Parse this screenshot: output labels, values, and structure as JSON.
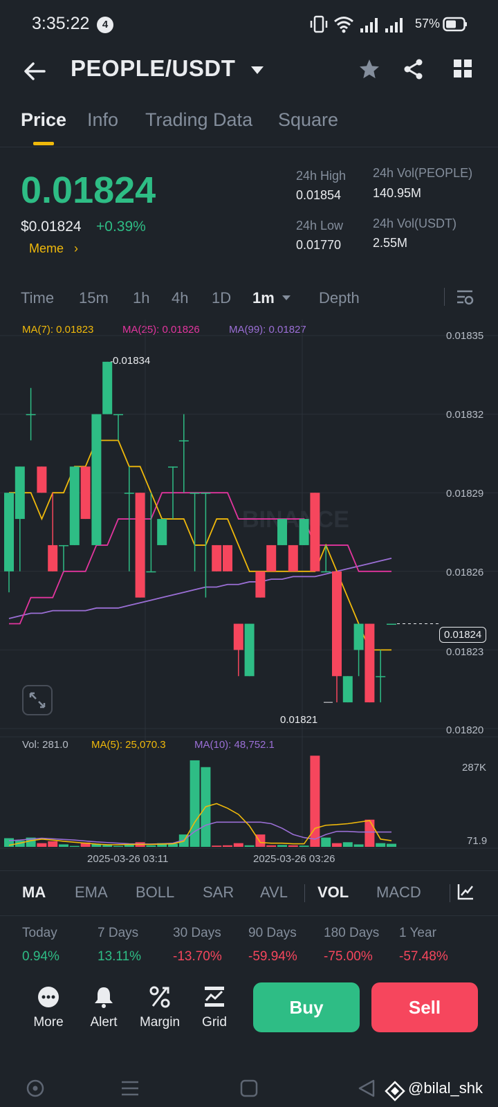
{
  "status_bar": {
    "time": "3:35:22",
    "notification_count": "4",
    "battery": "57%"
  },
  "header": {
    "pair": "PEOPLE/USDT"
  },
  "tabs": [
    {
      "label": "Price",
      "active": true
    },
    {
      "label": "Info",
      "active": false
    },
    {
      "label": "Trading Data",
      "active": false
    },
    {
      "label": "Square",
      "active": false
    }
  ],
  "ticker": {
    "last_price": "0.01824",
    "usd_price": "$0.01824",
    "change": "+0.39%",
    "tag": "Meme",
    "high_label": "24h High",
    "high_value": "0.01854",
    "low_label": "24h Low",
    "low_value": "0.01770",
    "vol_base_label": "24h Vol(PEOPLE)",
    "vol_base_value": "140.95M",
    "vol_quote_label": "24h Vol(USDT)",
    "vol_quote_value": "2.55M"
  },
  "intervals": {
    "items": [
      "Time",
      "15m",
      "1h",
      "4h",
      "1D"
    ],
    "selected": "1m",
    "depth": "Depth"
  },
  "ma_legend": {
    "ma7": "MA(7): 0.01823",
    "ma25": "MA(25): 0.01826",
    "ma99": "MA(99): 0.01827"
  },
  "price_axis": {
    "ticks": [
      "0.01835",
      "0.01832",
      "0.01829",
      "0.01826",
      "0.01823",
      "0.01820"
    ],
    "current": "0.01824",
    "high_marker": "0.01834",
    "low_marker": "0.01821"
  },
  "colors": {
    "up": "#2ebd85",
    "down": "#f6465d",
    "ma7": "#f0b90b",
    "ma25": "#e2359e",
    "ma99": "#9b6fd6",
    "accent": "#f0b90b"
  },
  "chart_data": {
    "type": "candlestick",
    "price_ylim": [
      0.0182,
      0.01835
    ],
    "x_ticks": [
      "2025-03-26 03:11",
      "2025-03-26 03:26"
    ],
    "candles": [
      {
        "o": 0.01826,
        "h": 0.01829,
        "l": 0.018252,
        "c": 0.01829
      },
      {
        "o": 0.01828,
        "h": 0.0183,
        "l": 0.01826,
        "c": 0.0183
      },
      {
        "o": 0.01832,
        "h": 0.01833,
        "l": 0.01831,
        "c": 0.01832
      },
      {
        "o": 0.0183,
        "h": 0.0183,
        "l": 0.01829,
        "c": 0.01829
      },
      {
        "o": 0.01827,
        "h": 0.01829,
        "l": 0.01826,
        "c": 0.01826
      },
      {
        "o": 0.01827,
        "h": 0.01827,
        "l": 0.01826,
        "c": 0.01827
      },
      {
        "o": 0.01827,
        "h": 0.0183,
        "l": 0.01827,
        "c": 0.0183
      },
      {
        "o": 0.0183,
        "h": 0.0183,
        "l": 0.01828,
        "c": 0.01828
      },
      {
        "o": 0.01827,
        "h": 0.01832,
        "l": 0.01827,
        "c": 0.01832
      },
      {
        "o": 0.01832,
        "h": 0.01834,
        "l": 0.01832,
        "c": 0.01834
      },
      {
        "o": 0.01832,
        "h": 0.01832,
        "l": 0.01831,
        "c": 0.01832
      },
      {
        "o": 0.01829,
        "h": 0.0183,
        "l": 0.01826,
        "c": 0.01829
      },
      {
        "o": 0.01829,
        "h": 0.01829,
        "l": 0.01825,
        "c": 0.01825
      },
      {
        "o": 0.01826,
        "h": 0.01829,
        "l": 0.01826,
        "c": 0.01826
      },
      {
        "o": 0.01827,
        "h": 0.01828,
        "l": 0.01827,
        "c": 0.01828
      },
      {
        "o": 0.0183,
        "h": 0.0183,
        "l": 0.01828,
        "c": 0.0183
      },
      {
        "o": 0.01831,
        "h": 0.01832,
        "l": 0.01829,
        "c": 0.01831
      },
      {
        "o": 0.01829,
        "h": 0.01829,
        "l": 0.01826,
        "c": 0.01829
      },
      {
        "o": 0.01829,
        "h": 0.01829,
        "l": 0.01825,
        "c": 0.01829
      },
      {
        "o": 0.01827,
        "h": 0.01827,
        "l": 0.01826,
        "c": 0.01826
      },
      {
        "o": 0.01827,
        "h": 0.01827,
        "l": 0.01826,
        "c": 0.01826
      },
      {
        "o": 0.01824,
        "h": 0.01824,
        "l": 0.01822,
        "c": 0.01823
      },
      {
        "o": 0.01822,
        "h": 0.01824,
        "l": 0.01822,
        "c": 0.01824
      },
      {
        "o": 0.01826,
        "h": 0.01826,
        "l": 0.01825,
        "c": 0.01825
      },
      {
        "o": 0.01827,
        "h": 0.01827,
        "l": 0.01826,
        "c": 0.01826
      },
      {
        "o": 0.01827,
        "h": 0.01828,
        "l": 0.01827,
        "c": 0.01828
      },
      {
        "o": 0.01827,
        "h": 0.01827,
        "l": 0.01826,
        "c": 0.01826
      },
      {
        "o": 0.01827,
        "h": 0.01828,
        "l": 0.01827,
        "c": 0.01828
      },
      {
        "o": 0.01829,
        "h": 0.01829,
        "l": 0.01826,
        "c": 0.01826
      },
      {
        "o": 0.01826,
        "h": 0.01827,
        "l": 0.01826,
        "c": 0.01826
      },
      {
        "o": 0.01826,
        "h": 0.01826,
        "l": 0.01821,
        "c": 0.01822
      },
      {
        "o": 0.01821,
        "h": 0.01822,
        "l": 0.01821,
        "c": 0.01822
      },
      {
        "o": 0.01823,
        "h": 0.01824,
        "l": 0.01822,
        "c": 0.01824
      },
      {
        "o": 0.01824,
        "h": 0.01824,
        "l": 0.01821,
        "c": 0.01821
      },
      {
        "o": 0.01822,
        "h": 0.01823,
        "l": 0.01821,
        "c": 0.01822
      },
      {
        "o": 0.01824,
        "h": 0.01824,
        "l": 0.01824,
        "c": 0.01824
      }
    ],
    "ma7": [
      0.01829,
      0.01829,
      0.01829,
      0.01828,
      0.01829,
      0.01829,
      0.0183,
      0.0183,
      0.01831,
      0.01831,
      0.01831,
      0.0183,
      0.0183,
      0.01829,
      0.01828,
      0.01828,
      0.01828,
      0.01827,
      0.01827,
      0.01828,
      0.01828,
      0.01827,
      0.01826,
      0.01826,
      0.01826,
      0.01826,
      0.01826,
      0.01826,
      0.01826,
      0.01827,
      0.01826,
      0.01825,
      0.01824,
      0.01823,
      0.01823,
      0.01823
    ],
    "ma25": [
      0.01824,
      0.01824,
      0.01825,
      0.01825,
      0.01825,
      0.01826,
      0.01826,
      0.01826,
      0.01827,
      0.01827,
      0.01828,
      0.01828,
      0.01828,
      0.01828,
      0.01829,
      0.01829,
      0.01829,
      0.01829,
      0.01829,
      0.01829,
      0.01829,
      0.01828,
      0.01828,
      0.01828,
      0.01828,
      0.01828,
      0.01828,
      0.01828,
      0.01827,
      0.01827,
      0.01827,
      0.01827,
      0.01826,
      0.01826,
      0.01826,
      0.01826
    ],
    "ma99": [
      0.018242,
      0.018243,
      0.018244,
      0.018244,
      0.018245,
      0.018245,
      0.018245,
      0.018245,
      0.018246,
      0.018246,
      0.018246,
      0.018247,
      0.018248,
      0.018249,
      0.01825,
      0.018251,
      0.018252,
      0.018253,
      0.018254,
      0.018254,
      0.018255,
      0.018255,
      0.018256,
      0.018256,
      0.018257,
      0.018257,
      0.018258,
      0.018258,
      0.018258,
      0.018259,
      0.01826,
      0.018261,
      0.018262,
      0.018263,
      0.018264,
      0.018265
    ],
    "volume_ylim": [
      0,
      300000
    ],
    "volumes": [
      28000,
      20000,
      30000,
      12000,
      18000,
      8000,
      3000,
      14000,
      10000,
      6000,
      3000,
      8000,
      15000,
      5000,
      12000,
      10000,
      40000,
      280000,
      258000,
      4000,
      5000,
      12000,
      5000,
      40000,
      5000,
      6000,
      5000,
      4000,
      295000,
      30000,
      12000,
      15000,
      8000,
      88000,
      12000,
      10000
    ],
    "vol_ma5": [
      5000,
      12000,
      20000,
      25000,
      22000,
      18000,
      15000,
      12000,
      9000,
      7000,
      7000,
      8000,
      8000,
      8000,
      9000,
      10000,
      18000,
      80000,
      130000,
      140000,
      125000,
      105000,
      68000,
      14000,
      12000,
      12000,
      10000,
      10000,
      60000,
      70000,
      72000,
      75000,
      80000,
      85000,
      25000,
      20000
    ],
    "vol_ma10": [
      20000,
      22000,
      25000,
      28000,
      26000,
      24000,
      22000,
      19000,
      16000,
      14000,
      12000,
      10000,
      9000,
      9000,
      10000,
      12000,
      22000,
      50000,
      70000,
      80000,
      80000,
      80000,
      80000,
      80000,
      75000,
      60000,
      40000,
      30000,
      25000,
      40000,
      50000,
      50000,
      48000,
      48000,
      48000,
      48000
    ]
  },
  "volume_legend": {
    "vol": "Vol: 281.0",
    "ma5": "MA(5): 25,070.3",
    "ma10": "MA(10): 48,752.1",
    "axis_top": "287K",
    "axis_bottom": "71.9"
  },
  "indicators": {
    "items": [
      "MA",
      "EMA",
      "BOLL",
      "SAR",
      "AVL",
      "VOL",
      "MACD"
    ]
  },
  "performance": [
    {
      "label": "Today",
      "value": "0.94%",
      "dir": "up"
    },
    {
      "label": "7 Days",
      "value": "13.11%",
      "dir": "up"
    },
    {
      "label": "30 Days",
      "value": "-13.70%",
      "dir": "down"
    },
    {
      "label": "90 Days",
      "value": "-59.94%",
      "dir": "down"
    },
    {
      "label": "180 Days",
      "value": "-75.00%",
      "dir": "down"
    },
    {
      "label": "1 Year",
      "value": "-57.48%",
      "dir": "down"
    }
  ],
  "actions": {
    "more": "More",
    "alert": "Alert",
    "margin": "Margin",
    "grid": "Grid",
    "buy": "Buy",
    "sell": "Sell"
  },
  "watermark": "@bilal_shk",
  "chart_watermark": "BINANCE"
}
